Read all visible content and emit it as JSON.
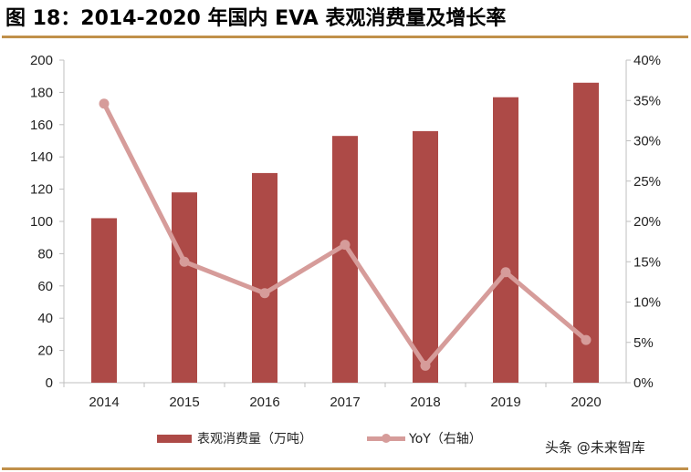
{
  "title": "图 18：2014-2020 年国内 EVA 表观消费量及增长率",
  "watermark": "头条 @未来智库",
  "colors": {
    "bar": "#ad4a47",
    "line": "#d69c9a",
    "rule": "#c0904a",
    "axis": "#bfbfbf"
  },
  "chart_data": {
    "type": "bar+line",
    "categories": [
      "2014",
      "2015",
      "2016",
      "2017",
      "2018",
      "2019",
      "2020"
    ],
    "series": [
      {
        "name": "表观消费量（万吨）",
        "type": "bar",
        "axis": "left",
        "values": [
          102,
          118,
          130,
          153,
          156,
          177,
          186
        ]
      },
      {
        "name": "YoY（右轴）",
        "type": "line",
        "axis": "right",
        "values": [
          34.6,
          15.0,
          11.1,
          17.1,
          2.1,
          13.7,
          5.3
        ]
      }
    ],
    "ylim_left": [
      0,
      200
    ],
    "yticks_left": [
      "0",
      "20",
      "40",
      "60",
      "80",
      "100",
      "120",
      "140",
      "160",
      "180",
      "200"
    ],
    "ylim_right": [
      0,
      40
    ],
    "yticks_right": [
      "0%",
      "5%",
      "10%",
      "15%",
      "20%",
      "25%",
      "30%",
      "35%",
      "40%"
    ],
    "grid": false,
    "legend_position": "bottom"
  }
}
